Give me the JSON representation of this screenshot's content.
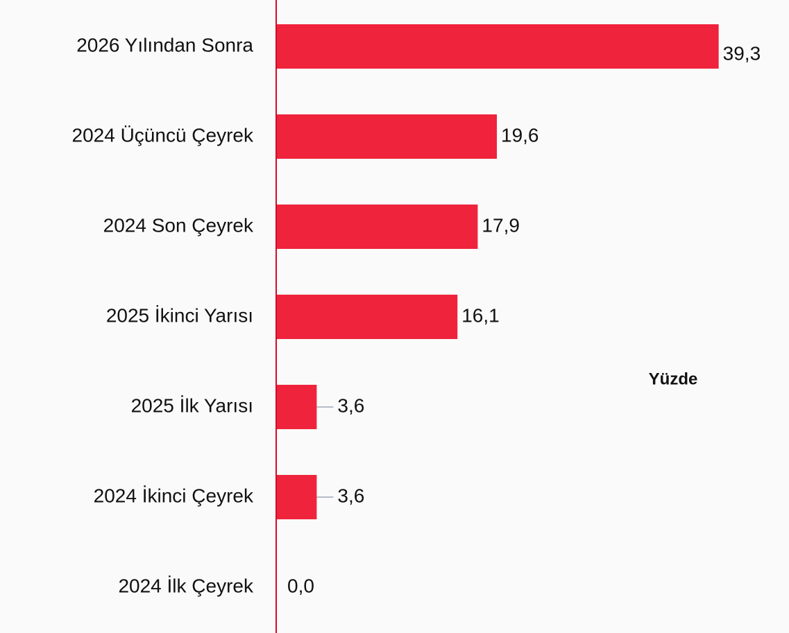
{
  "chart_data": {
    "type": "hbar",
    "annotation": "Yüzde",
    "categories": [
      "2026 Yılından Sonra",
      "2024 Üçüncü Çeyrek",
      "2024 Son Çeyrek",
      "2025 İkinci Yarısı",
      "2025 İlk Yarısı",
      "2024 İkinci Çeyrek",
      "2024 İlk Çeyrek"
    ],
    "values": [
      39.3,
      19.6,
      17.9,
      16.1,
      3.6,
      3.6,
      0
    ],
    "value_labels": [
      "39,3",
      "19,6",
      "17,9",
      "16,1",
      "3,6",
      "3,6",
      "0,0"
    ],
    "color": "#ef233c",
    "xlim": [
      0,
      40
    ]
  }
}
